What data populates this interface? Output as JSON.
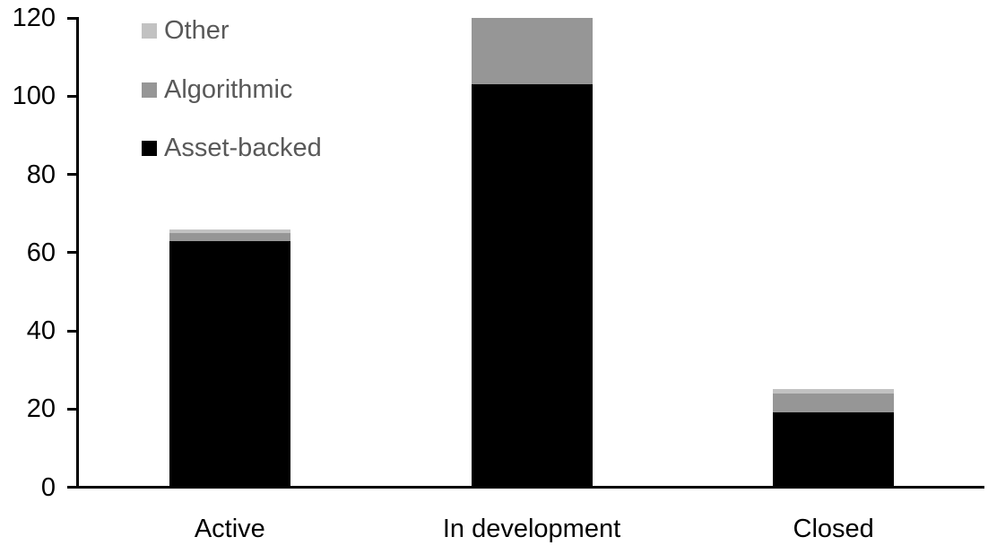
{
  "page": {
    "background": "#FFFFFF"
  },
  "chart_data": {
    "type": "bar",
    "stacked": true,
    "title": "",
    "xlabel": "",
    "ylabel": "",
    "categories": [
      "Active",
      "In development",
      "Closed"
    ],
    "series": [
      {
        "name": "Asset-backed",
        "color": "#000000",
        "values": [
          63,
          103,
          19
        ]
      },
      {
        "name": "Algorithmic",
        "color": "#969696",
        "values": [
          2,
          17,
          5
        ]
      },
      {
        "name": "Other",
        "color": "#C2C2C2",
        "values": [
          1,
          0,
          1
        ]
      }
    ],
    "stack_totals": [
      66,
      120,
      25
    ],
    "ylim": [
      0,
      120
    ],
    "y_ticks": [
      0,
      20,
      40,
      60,
      80,
      100,
      120
    ],
    "grid": false,
    "legend_position": "top-left",
    "legend_order": [
      "Other",
      "Algorithmic",
      "Asset-backed"
    ],
    "legend_text_color": "#595959",
    "axis_color": "#000000",
    "tick_label_color": "#000000",
    "category_label_color": "#000000"
  }
}
